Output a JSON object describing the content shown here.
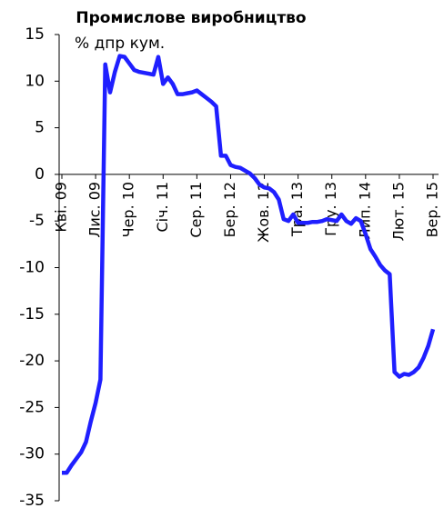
{
  "chart_data": {
    "type": "line",
    "title": "Промислове виробництво",
    "subtitle": "% дпр кум.",
    "categories": [
      "Кві. 09",
      null,
      null,
      null,
      null,
      null,
      null,
      "Лис. 09",
      null,
      null,
      null,
      null,
      null,
      null,
      "Чер. 10",
      null,
      null,
      null,
      null,
      null,
      null,
      "Січ. 11",
      null,
      null,
      null,
      null,
      null,
      null,
      "Сер. 11",
      null,
      null,
      null,
      null,
      null,
      null,
      "Бер. 12",
      null,
      null,
      null,
      null,
      null,
      null,
      "Жов. 12",
      null,
      null,
      null,
      null,
      null,
      null,
      "Тра. 13",
      null,
      null,
      null,
      null,
      null,
      null,
      "Гру. 13",
      null,
      null,
      null,
      null,
      null,
      null,
      "Лип. 14",
      null,
      null,
      null,
      null,
      null,
      null,
      "Лют. 15",
      null,
      null,
      null,
      null,
      null,
      null,
      "Вер. 15"
    ],
    "series": [
      {
        "color": "#1f1fff",
        "values": [
          -32,
          -32,
          -31.2,
          -30.5,
          -29.8,
          -28.7,
          -26.5,
          -24.5,
          -22,
          11.8,
          8.8,
          11,
          12.7,
          12.6,
          11.9,
          11.2,
          11,
          10.9,
          10.8,
          10.7,
          12.6,
          9.7,
          10.4,
          9.7,
          8.6,
          8.6,
          8.7,
          8.8,
          9,
          8.6,
          8.2,
          7.8,
          7.3,
          2,
          2,
          1,
          0.8,
          0.7,
          0.4,
          0.1,
          -0.4,
          -1.1,
          -1.4,
          -1.5,
          -1.9,
          -2.7,
          -4.8,
          -5,
          -4.3,
          -5.2,
          -5.2,
          -5.2,
          -5.1,
          -5.1,
          -5,
          -4.8,
          -4.9,
          -5,
          -4.3,
          -5,
          -5.3,
          -4.7,
          -5,
          -6.4,
          -8,
          -8.8,
          -9.7,
          -10.3,
          -10.7,
          -21.2,
          -21.7,
          -21.4,
          -21.5,
          -21.2,
          -20.7,
          -19.7,
          -18.4,
          -16.6
        ]
      }
    ],
    "ylim": [
      -35,
      15
    ],
    "yticks": [
      -35,
      -30,
      -25,
      -20,
      -15,
      -10,
      -5,
      0,
      5,
      10,
      15
    ]
  }
}
